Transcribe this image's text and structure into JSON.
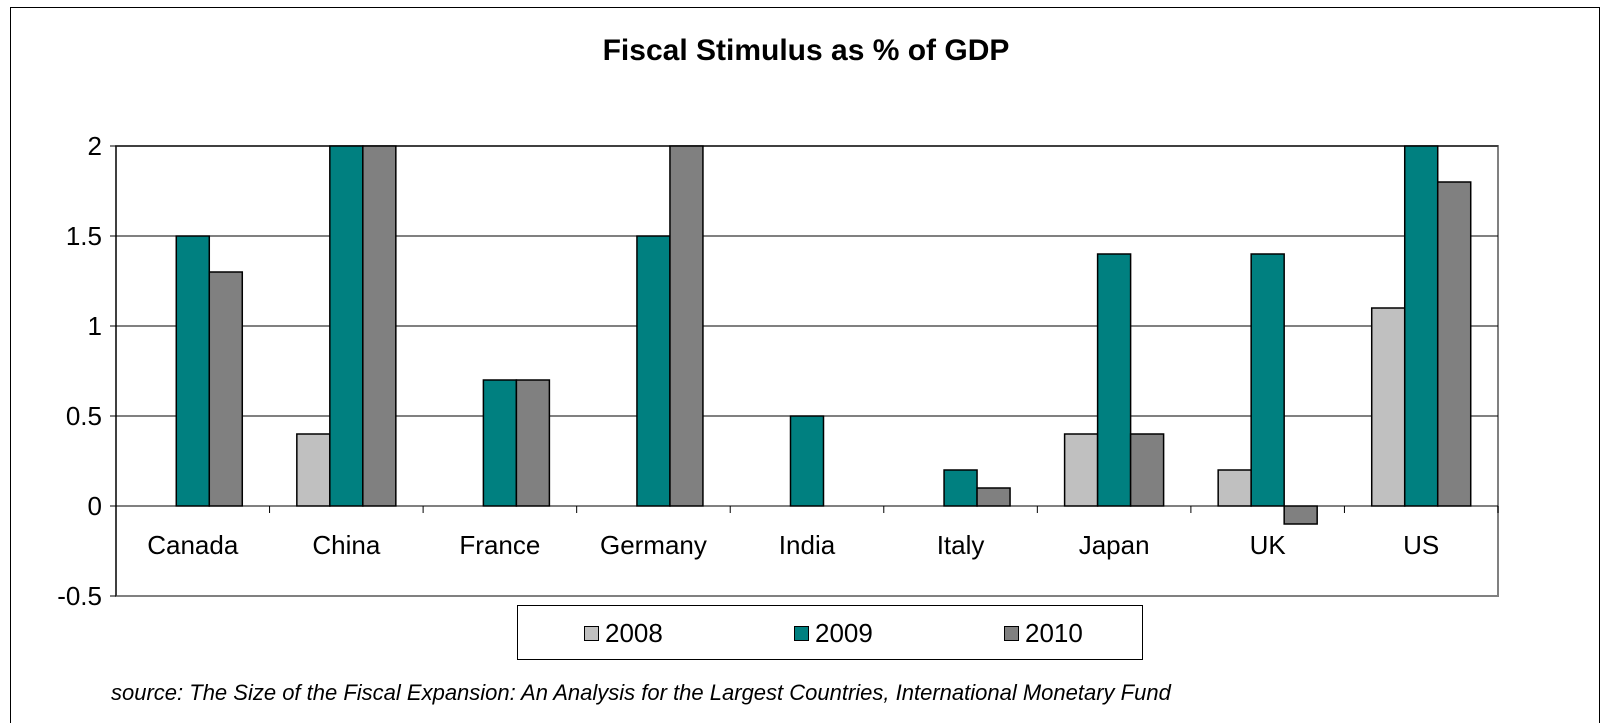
{
  "chart_data": {
    "type": "bar",
    "title": "Fiscal Stimulus as % of GDP",
    "categories": [
      "Canada",
      "China",
      "France",
      "Germany",
      "India",
      "Italy",
      "Japan",
      "UK",
      "US"
    ],
    "series": [
      {
        "name": "2008",
        "color": "#c0c0c0",
        "values": [
          0,
          0.4,
          0,
          0,
          0,
          0,
          0.4,
          0.2,
          1.1
        ]
      },
      {
        "name": "2009",
        "color": "#008080",
        "values": [
          1.5,
          2.0,
          0.7,
          1.5,
          0.5,
          0.2,
          1.4,
          1.4,
          2.0
        ]
      },
      {
        "name": "2010",
        "color": "#808080",
        "values": [
          1.3,
          2.0,
          0.7,
          2.0,
          0,
          0.1,
          0.4,
          -0.1,
          1.8
        ]
      }
    ],
    "ylim": [
      -0.5,
      2
    ],
    "yticks": [
      2,
      1.5,
      1,
      0.5,
      0,
      -0.5
    ],
    "ytick_labels": [
      "2",
      "1.5",
      "1",
      "0.5",
      "0",
      "-0.5"
    ],
    "xlabel": "",
    "ylabel": "",
    "grid": true,
    "legend_position": "bottom",
    "source": "source: The Size of the Fiscal Expansion: An Analysis for the Largest Countries, International Monetary Fund"
  }
}
